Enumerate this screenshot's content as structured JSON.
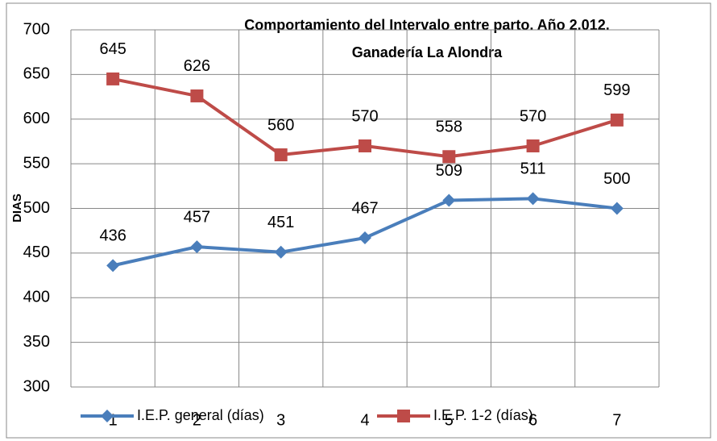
{
  "chart_data": {
    "type": "line",
    "title": "Comportamiento del Intervalo entre parto. Año 2.012.",
    "subtitle": "Ganadería La Alondra",
    "y_label": "DIAS",
    "categories": [
      "1",
      "2",
      "3",
      "4",
      "5",
      "6",
      "7"
    ],
    "series": [
      {
        "name": "I.E.P. general (días)",
        "color": "#4a7ebb",
        "marker": "diamond",
        "values": [
          436,
          457,
          451,
          467,
          509,
          511,
          500
        ]
      },
      {
        "name": "I.E.P. 1-2 (días)",
        "color": "#be4b48",
        "marker": "square",
        "values": [
          645,
          626,
          560,
          570,
          558,
          570,
          599
        ]
      }
    ],
    "ylim": [
      300,
      700
    ],
    "yticks": [
      300,
      350,
      400,
      450,
      500,
      550,
      600,
      650,
      700
    ],
    "grid": true,
    "legend": "bottom"
  }
}
